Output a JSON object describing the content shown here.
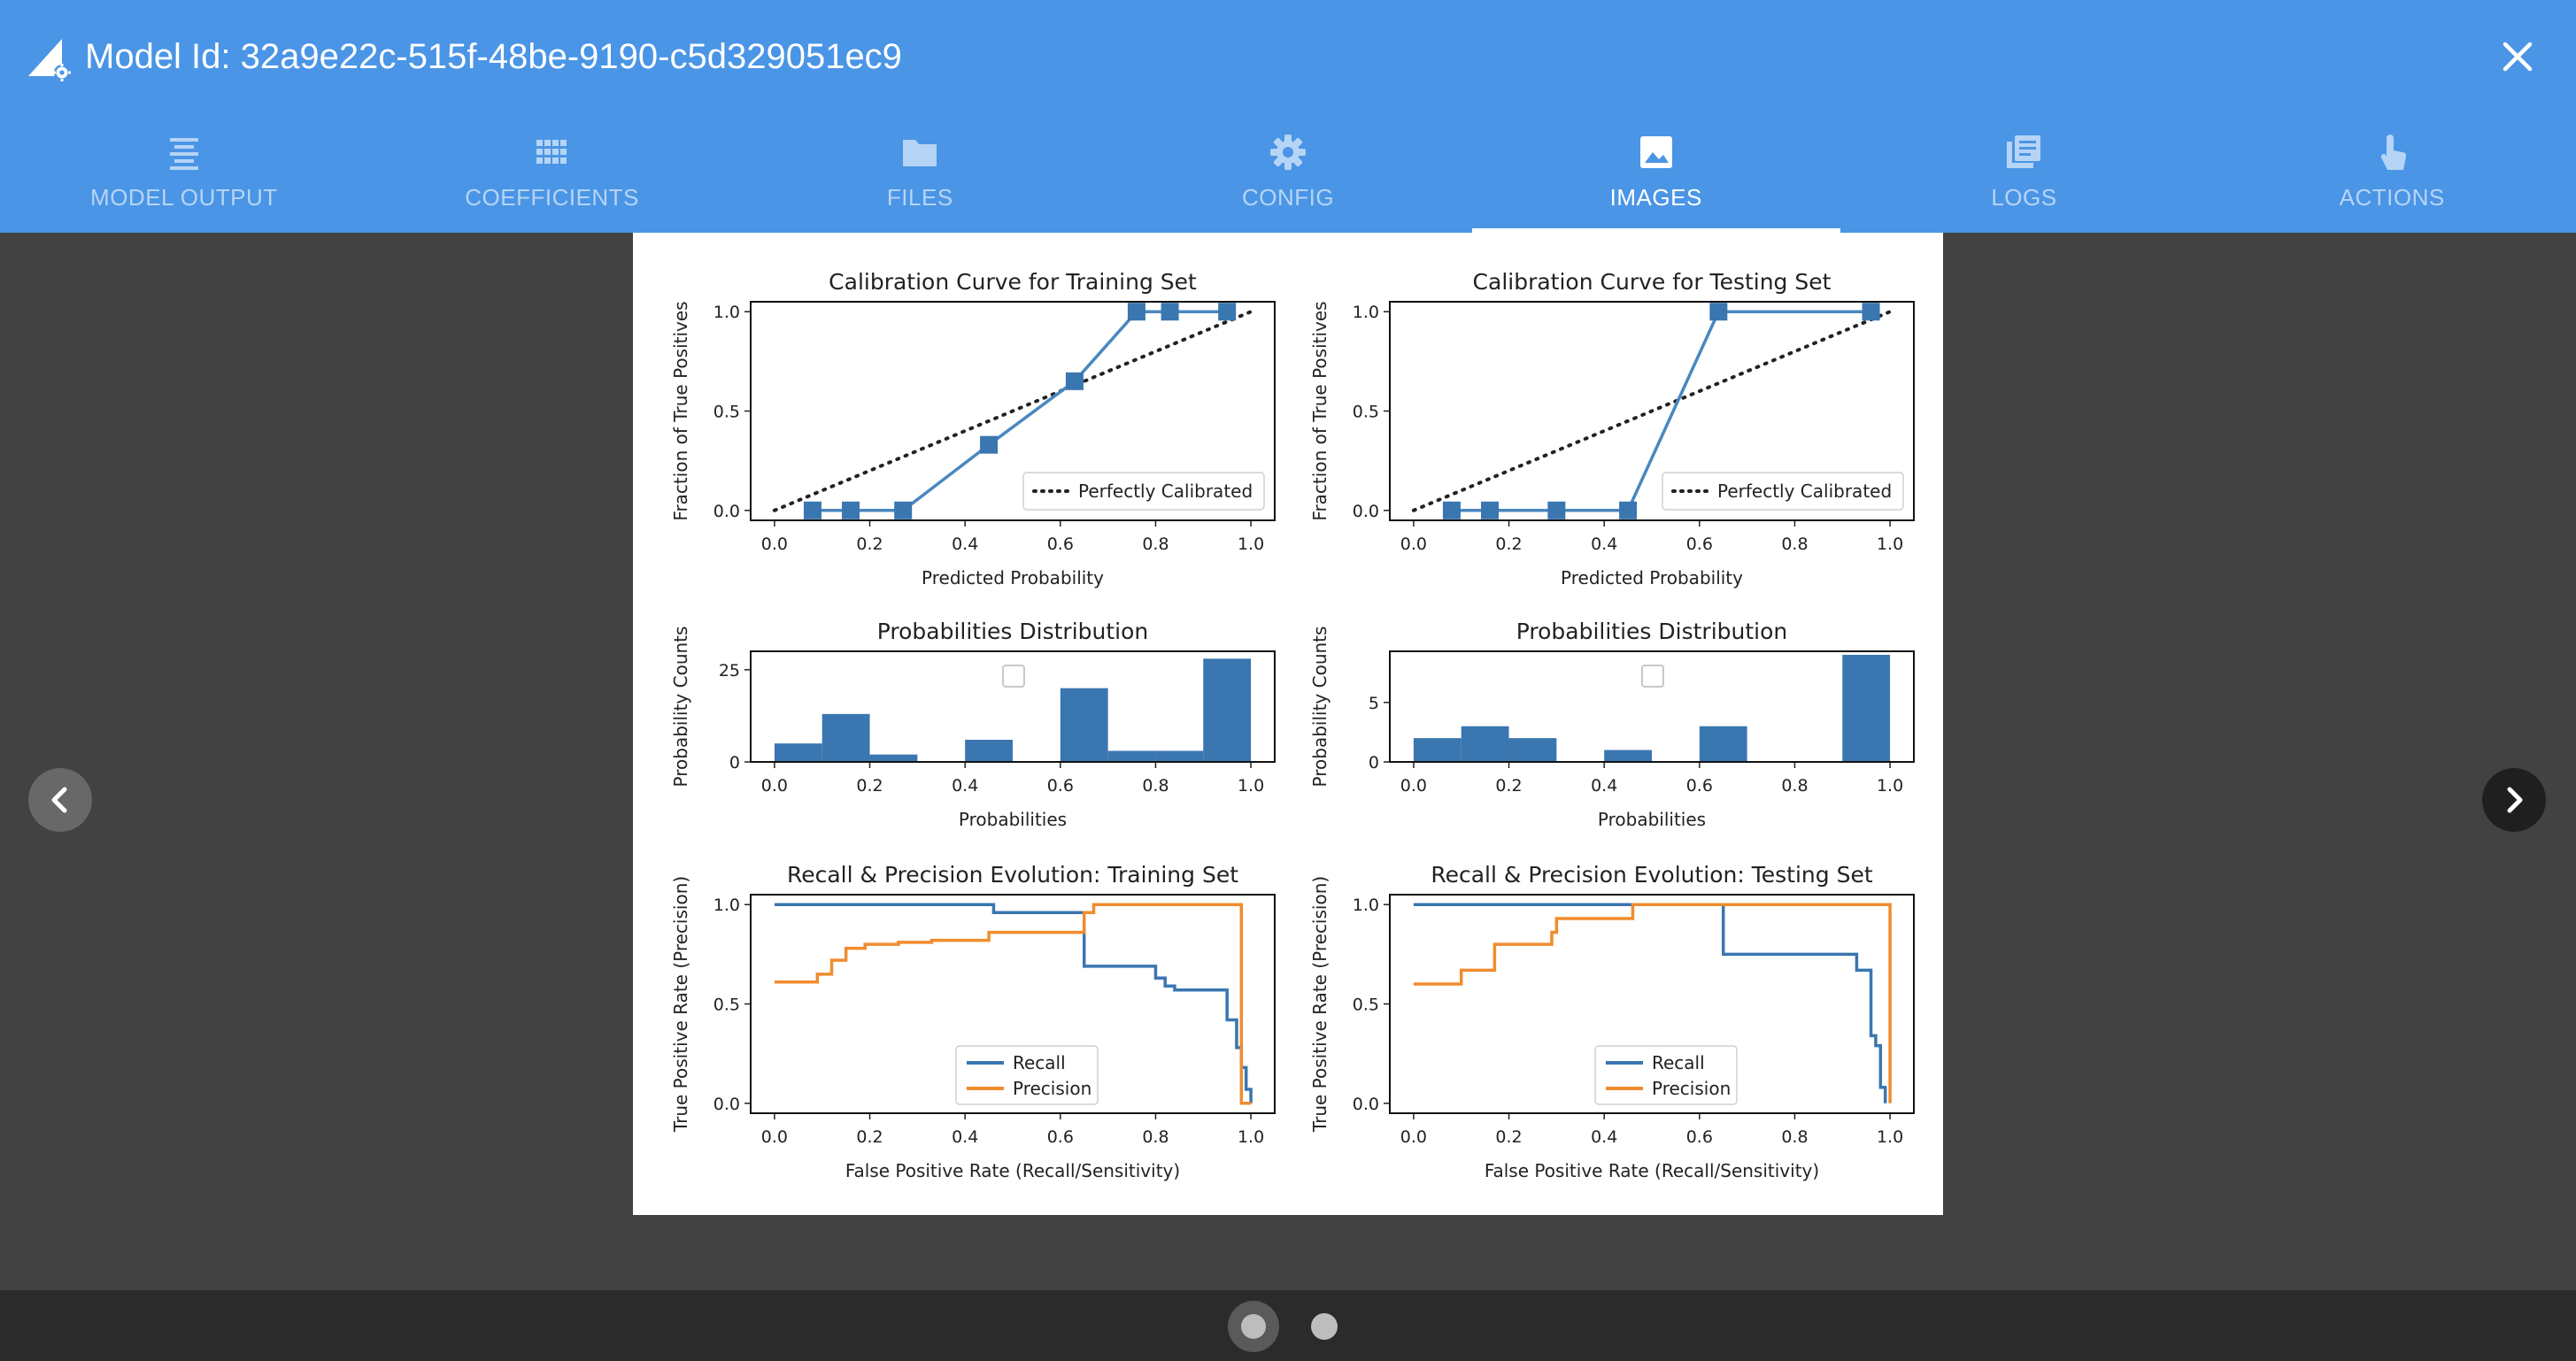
{
  "header": {
    "title": "Model Id: 32a9e22c-515f-48be-9190-c5d329051ec9",
    "logo_icon": "wand-gear-icon",
    "close_icon": "close-icon"
  },
  "tabs": [
    {
      "label": "MODEL OUTPUT",
      "icon": "text-lines-icon",
      "active": false
    },
    {
      "label": "COEFFICIENTS",
      "icon": "grid-icon",
      "active": false
    },
    {
      "label": "FILES",
      "icon": "folder-icon",
      "active": false
    },
    {
      "label": "CONFIG",
      "icon": "gear-icon",
      "active": false
    },
    {
      "label": "IMAGES",
      "icon": "image-icon",
      "active": true
    },
    {
      "label": "LOGS",
      "icon": "logs-icon",
      "active": false
    },
    {
      "label": "ACTIONS",
      "icon": "touch-icon",
      "active": false
    }
  ],
  "carousel": {
    "prev_icon": "chevron-left-icon",
    "next_icon": "chevron-right-icon",
    "slides": 2,
    "active_slide": 1
  },
  "colors": {
    "app_bar": "#4a95e6",
    "content_bg": "#424242",
    "recall": "#3a76b0",
    "precision": "#f08c2e",
    "bar": "#3a76b0"
  },
  "chart_data": [
    {
      "type": "line",
      "title": "Calibration Curve for Training Set",
      "xlabel": "Predicted Probability",
      "ylabel": "Fraction of True Positives",
      "xlim": [
        -0.05,
        1.05
      ],
      "ylim": [
        -0.05,
        1.05
      ],
      "xticks": [
        "0.0",
        "0.2",
        "0.4",
        "0.6",
        "0.8",
        "1.0"
      ],
      "yticks": [
        "0.0",
        "0.5",
        "1.0"
      ],
      "legend": [
        "Perfectly Calibrated"
      ],
      "legend_position": "lower right",
      "series": [
        {
          "name": "",
          "x": [
            0.08,
            0.16,
            0.27,
            0.45,
            0.63,
            0.76,
            0.83,
            0.95
          ],
          "y": [
            0.0,
            0.0,
            0.0,
            0.33,
            0.65,
            1.0,
            1.0,
            1.0
          ]
        },
        {
          "name": "Perfectly Calibrated",
          "x": [
            0,
            1
          ],
          "y": [
            0,
            1
          ]
        }
      ]
    },
    {
      "type": "line",
      "title": "Calibration Curve for Testing Set",
      "xlabel": "Predicted Probability",
      "ylabel": "Fraction of True Positives",
      "xlim": [
        -0.05,
        1.05
      ],
      "ylim": [
        -0.05,
        1.05
      ],
      "xticks": [
        "0.0",
        "0.2",
        "0.4",
        "0.6",
        "0.8",
        "1.0"
      ],
      "yticks": [
        "0.0",
        "0.5",
        "1.0"
      ],
      "legend": [
        "Perfectly Calibrated"
      ],
      "legend_position": "lower right",
      "series": [
        {
          "name": "",
          "x": [
            0.08,
            0.16,
            0.3,
            0.45,
            0.64,
            0.96
          ],
          "y": [
            0.0,
            0.0,
            0.0,
            0.0,
            1.0,
            1.0
          ]
        },
        {
          "name": "Perfectly Calibrated",
          "x": [
            0,
            1
          ],
          "y": [
            0,
            1
          ]
        }
      ]
    },
    {
      "type": "bar",
      "title": "Probabilities Distribution",
      "xlabel": "Probabilities",
      "ylabel": "Probability Counts",
      "xlim": [
        -0.05,
        1.05
      ],
      "ylim": [
        0,
        30
      ],
      "xticks": [
        "0.0",
        "0.2",
        "0.4",
        "0.6",
        "0.8",
        "1.0"
      ],
      "yticks": [
        "0",
        "25"
      ],
      "bin_edges": [
        0.0,
        0.1,
        0.2,
        0.3,
        0.4,
        0.5,
        0.6,
        0.7,
        0.8,
        0.9,
        1.0
      ],
      "values": [
        5,
        13,
        2,
        0,
        6,
        0,
        20,
        3,
        3,
        28
      ]
    },
    {
      "type": "bar",
      "title": "Probabilities Distribution",
      "xlabel": "Probabilities",
      "ylabel": "Probability Counts",
      "xlim": [
        -0.05,
        1.05
      ],
      "ylim": [
        0,
        9.3
      ],
      "xticks": [
        "0.0",
        "0.2",
        "0.4",
        "0.6",
        "0.8",
        "1.0"
      ],
      "yticks": [
        "0",
        "5"
      ],
      "bin_edges": [
        0.0,
        0.1,
        0.2,
        0.3,
        0.4,
        0.5,
        0.6,
        0.7,
        0.8,
        0.9,
        1.0
      ],
      "values": [
        2,
        3,
        2,
        0,
        1,
        0,
        3,
        0,
        0,
        9
      ]
    },
    {
      "type": "line",
      "title": "Recall & Precision Evolution: Training Set",
      "xlabel": "False Positive Rate (Recall/Sensitivity)",
      "ylabel": "True Positive Rate (Precision)",
      "xlim": [
        -0.05,
        1.05
      ],
      "ylim": [
        -0.05,
        1.05
      ],
      "xticks": [
        "0.0",
        "0.2",
        "0.4",
        "0.6",
        "0.8",
        "1.0"
      ],
      "yticks": [
        "0.0",
        "0.5",
        "1.0"
      ],
      "legend": [
        "Recall",
        "Precision"
      ],
      "legend_position": "lower center",
      "series": [
        {
          "name": "Recall",
          "x": [
            0.0,
            0.45,
            0.46,
            0.64,
            0.65,
            0.8,
            0.82,
            0.84,
            0.93,
            0.95,
            0.97,
            0.98,
            0.99,
            1.0
          ],
          "y": [
            1.0,
            1.0,
            0.96,
            0.96,
            0.69,
            0.63,
            0.59,
            0.57,
            0.57,
            0.42,
            0.28,
            0.18,
            0.07,
            0.0
          ]
        },
        {
          "name": "Precision",
          "x": [
            0.0,
            0.06,
            0.09,
            0.12,
            0.15,
            0.19,
            0.26,
            0.33,
            0.45,
            0.65,
            0.67,
            0.97,
            0.98,
            1.0
          ],
          "y": [
            0.61,
            0.61,
            0.65,
            0.72,
            0.78,
            0.8,
            0.81,
            0.82,
            0.86,
            0.96,
            1.0,
            1.0,
            0.0,
            0.0
          ]
        }
      ]
    },
    {
      "type": "line",
      "title": "Recall & Precision Evolution: Testing Set",
      "xlabel": "False Positive Rate (Recall/Sensitivity)",
      "ylabel": "True Positive Rate (Precision)",
      "xlim": [
        -0.05,
        1.05
      ],
      "ylim": [
        -0.05,
        1.05
      ],
      "xticks": [
        "0.0",
        "0.2",
        "0.4",
        "0.6",
        "0.8",
        "1.0"
      ],
      "yticks": [
        "0.0",
        "0.5",
        "1.0"
      ],
      "legend": [
        "Recall",
        "Precision"
      ],
      "legend_position": "lower center",
      "series": [
        {
          "name": "Recall",
          "x": [
            0.0,
            0.64,
            0.65,
            0.92,
            0.93,
            0.95,
            0.96,
            0.97,
            0.98,
            0.99
          ],
          "y": [
            1.0,
            1.0,
            0.75,
            0.75,
            0.67,
            0.67,
            0.34,
            0.29,
            0.08,
            0.0
          ]
        },
        {
          "name": "Precision",
          "x": [
            0.0,
            0.07,
            0.1,
            0.15,
            0.17,
            0.2,
            0.29,
            0.3,
            0.45,
            0.46,
            0.99,
            1.0
          ],
          "y": [
            0.6,
            0.6,
            0.67,
            0.67,
            0.8,
            0.8,
            0.86,
            0.93,
            0.93,
            1.0,
            1.0,
            0.0
          ]
        }
      ]
    }
  ]
}
